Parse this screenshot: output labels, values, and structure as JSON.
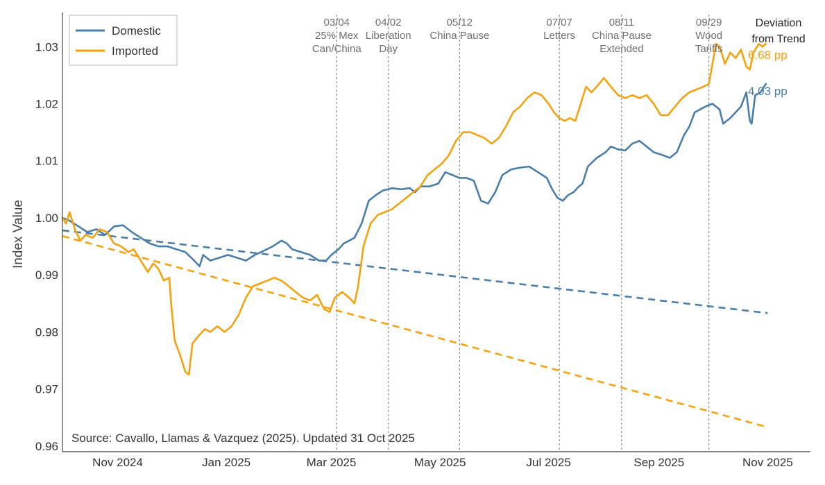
{
  "chart_data": {
    "type": "line",
    "title": "",
    "xlabel": "",
    "ylabel": "Index Value",
    "ylim": [
      0.959,
      1.036
    ],
    "yticks": [
      0.96,
      0.97,
      0.98,
      0.99,
      1.0,
      1.01,
      1.02,
      1.03
    ],
    "ytick_labels": [
      "0.96",
      "0.97",
      "0.98",
      "0.99",
      "1.00",
      "1.01",
      "1.02",
      "1.03"
    ],
    "xlim": [
      "2024-10-01",
      "2025-11-25"
    ],
    "xticks": [
      {
        "date": "2024-11-01",
        "label": "Nov 2024"
      },
      {
        "date": "2025-01-01",
        "label": "Jan 2025"
      },
      {
        "date": "2025-03-01",
        "label": "Mar 2025"
      },
      {
        "date": "2025-05-01",
        "label": "May 2025"
      },
      {
        "date": "2025-07-01",
        "label": "Jul 2025"
      },
      {
        "date": "2025-09-01",
        "label": "Sep 2025"
      },
      {
        "date": "2025-11-01",
        "label": "Nov 2025"
      }
    ],
    "legend": {
      "placement": "top-left",
      "entries": [
        "Domestic",
        "Imported"
      ]
    },
    "events": [
      {
        "date": "2025-03-04",
        "lines": [
          "03/04",
          "25% Mex",
          "Can/China"
        ]
      },
      {
        "date": "2025-04-02",
        "lines": [
          "04/02",
          "Liberation",
          "Day"
        ]
      },
      {
        "date": "2025-05-12",
        "lines": [
          "05/12",
          "China Pause"
        ]
      },
      {
        "date": "2025-07-07",
        "lines": [
          "07/07",
          "Letters"
        ]
      },
      {
        "date": "2025-08-11",
        "lines": [
          "08/11",
          "China Pause",
          "Extended"
        ]
      },
      {
        "date": "2025-09-29",
        "lines": [
          "09/29",
          "Wood",
          "Tariffs"
        ]
      }
    ],
    "deviation": {
      "title_lines": [
        "Deviation",
        "from Trend"
      ],
      "imported": "6.68 pp",
      "domestic": "4.03 pp"
    },
    "source": "Source: Cavallo, Llamas & Vazquez (2025). Updated 31 Oct 2025",
    "series": [
      {
        "name": "Domestic",
        "color": "#4a7eaa",
        "points": [
          [
            "2024-10-01",
            1.0
          ],
          [
            "2024-10-05",
            0.9995
          ],
          [
            "2024-10-10",
            0.9985
          ],
          [
            "2024-10-15",
            0.9975
          ],
          [
            "2024-10-20",
            0.998
          ],
          [
            "2024-10-25",
            0.997
          ],
          [
            "2024-10-30",
            0.9985
          ],
          [
            "2024-11-04",
            0.9987
          ],
          [
            "2024-11-09",
            0.9975
          ],
          [
            "2024-11-14",
            0.9965
          ],
          [
            "2024-11-19",
            0.9955
          ],
          [
            "2024-11-24",
            0.995
          ],
          [
            "2024-11-29",
            0.995
          ],
          [
            "2024-12-04",
            0.9945
          ],
          [
            "2024-12-09",
            0.994
          ],
          [
            "2024-12-14",
            0.9925
          ],
          [
            "2024-12-17",
            0.9915
          ],
          [
            "2024-12-19",
            0.9935
          ],
          [
            "2024-12-23",
            0.9925
          ],
          [
            "2024-12-28",
            0.993
          ],
          [
            "2025-01-02",
            0.9935
          ],
          [
            "2025-01-07",
            0.993
          ],
          [
            "2025-01-12",
            0.9925
          ],
          [
            "2025-01-17",
            0.9935
          ],
          [
            "2025-01-22",
            0.9942
          ],
          [
            "2025-01-27",
            0.995
          ],
          [
            "2025-02-01",
            0.996
          ],
          [
            "2025-02-04",
            0.9955
          ],
          [
            "2025-02-07",
            0.9945
          ],
          [
            "2025-02-12",
            0.994
          ],
          [
            "2025-02-17",
            0.9935
          ],
          [
            "2025-02-22",
            0.9925
          ],
          [
            "2025-02-26",
            0.9925
          ],
          [
            "2025-03-01",
            0.9935
          ],
          [
            "2025-03-05",
            0.9945
          ],
          [
            "2025-03-08",
            0.9955
          ],
          [
            "2025-03-11",
            0.996
          ],
          [
            "2025-03-14",
            0.9965
          ],
          [
            "2025-03-18",
            0.999
          ],
          [
            "2025-03-22",
            1.003
          ],
          [
            "2025-03-26",
            1.004
          ],
          [
            "2025-03-30",
            1.0048
          ],
          [
            "2025-04-04",
            1.0052
          ],
          [
            "2025-04-09",
            1.005
          ],
          [
            "2025-04-14",
            1.0052
          ],
          [
            "2025-04-17",
            1.0045
          ],
          [
            "2025-04-20",
            1.0055
          ],
          [
            "2025-04-25",
            1.0055
          ],
          [
            "2025-04-30",
            1.006
          ],
          [
            "2025-05-04",
            1.008
          ],
          [
            "2025-05-08",
            1.0075
          ],
          [
            "2025-05-12",
            1.007
          ],
          [
            "2025-05-16",
            1.007
          ],
          [
            "2025-05-20",
            1.0065
          ],
          [
            "2025-05-24",
            1.003
          ],
          [
            "2025-05-28",
            1.0025
          ],
          [
            "2025-06-01",
            1.0045
          ],
          [
            "2025-06-05",
            1.0075
          ],
          [
            "2025-06-10",
            1.0085
          ],
          [
            "2025-06-15",
            1.0088
          ],
          [
            "2025-06-20",
            1.009
          ],
          [
            "2025-06-25",
            1.008
          ],
          [
            "2025-06-30",
            1.007
          ],
          [
            "2025-07-03",
            1.005
          ],
          [
            "2025-07-06",
            1.0035
          ],
          [
            "2025-07-09",
            1.003
          ],
          [
            "2025-07-12",
            1.004
          ],
          [
            "2025-07-15",
            1.0045
          ],
          [
            "2025-07-18",
            1.0055
          ],
          [
            "2025-07-20",
            1.006
          ],
          [
            "2025-07-23",
            1.009
          ],
          [
            "2025-07-28",
            1.0105
          ],
          [
            "2025-08-02",
            1.0115
          ],
          [
            "2025-08-05",
            1.0125
          ],
          [
            "2025-08-09",
            1.012
          ],
          [
            "2025-08-13",
            1.0118
          ],
          [
            "2025-08-17",
            1.013
          ],
          [
            "2025-08-21",
            1.0135
          ],
          [
            "2025-08-25",
            1.0125
          ],
          [
            "2025-08-29",
            1.0115
          ],
          [
            "2025-09-03",
            1.011
          ],
          [
            "2025-09-07",
            1.0105
          ],
          [
            "2025-09-11",
            1.0115
          ],
          [
            "2025-09-15",
            1.0145
          ],
          [
            "2025-09-18",
            1.016
          ],
          [
            "2025-09-21",
            1.0185
          ],
          [
            "2025-09-24",
            1.019
          ],
          [
            "2025-09-27",
            1.0195
          ],
          [
            "2025-10-01",
            1.02
          ],
          [
            "2025-10-05",
            1.019
          ],
          [
            "2025-10-07",
            1.0165
          ],
          [
            "2025-10-11",
            1.0175
          ],
          [
            "2025-10-14",
            1.0185
          ],
          [
            "2025-10-17",
            1.0195
          ],
          [
            "2025-10-20",
            1.022
          ],
          [
            "2025-10-22",
            1.017
          ],
          [
            "2025-10-23",
            1.0165
          ],
          [
            "2025-10-25",
            1.0215
          ],
          [
            "2025-10-28",
            1.022
          ],
          [
            "2025-10-31",
            1.0235
          ]
        ]
      },
      {
        "name": "Imported",
        "color": "#f5a20f",
        "points": [
          [
            "2024-10-01",
            1.0
          ],
          [
            "2024-10-03",
            0.999
          ],
          [
            "2024-10-05",
            1.001
          ],
          [
            "2024-10-08",
            0.998
          ],
          [
            "2024-10-11",
            0.996
          ],
          [
            "2024-10-14",
            0.997
          ],
          [
            "2024-10-18",
            0.9965
          ],
          [
            "2024-10-22",
            0.998
          ],
          [
            "2024-10-26",
            0.9975
          ],
          [
            "2024-10-30",
            0.9955
          ],
          [
            "2024-11-03",
            0.995
          ],
          [
            "2024-11-07",
            0.994
          ],
          [
            "2024-11-10",
            0.9945
          ],
          [
            "2024-11-14",
            0.9925
          ],
          [
            "2024-11-18",
            0.9905
          ],
          [
            "2024-11-21",
            0.992
          ],
          [
            "2024-11-24",
            0.991
          ],
          [
            "2024-11-27",
            0.989
          ],
          [
            "2024-11-30",
            0.9895
          ],
          [
            "2024-12-01",
            0.985
          ],
          [
            "2024-12-03",
            0.9785
          ],
          [
            "2024-12-06",
            0.976
          ],
          [
            "2024-12-09",
            0.973
          ],
          [
            "2024-12-11",
            0.9725
          ],
          [
            "2024-12-13",
            0.978
          ],
          [
            "2024-12-17",
            0.9795
          ],
          [
            "2024-12-20",
            0.9805
          ],
          [
            "2024-12-23",
            0.98
          ],
          [
            "2024-12-27",
            0.981
          ],
          [
            "2024-12-31",
            0.98
          ],
          [
            "2025-01-04",
            0.981
          ],
          [
            "2025-01-08",
            0.983
          ],
          [
            "2025-01-12",
            0.986
          ],
          [
            "2025-01-16",
            0.988
          ],
          [
            "2025-01-20",
            0.9885
          ],
          [
            "2025-01-24",
            0.989
          ],
          [
            "2025-01-28",
            0.9895
          ],
          [
            "2025-02-01",
            0.989
          ],
          [
            "2025-02-05",
            0.988
          ],
          [
            "2025-02-09",
            0.987
          ],
          [
            "2025-02-13",
            0.986
          ],
          [
            "2025-02-17",
            0.9855
          ],
          [
            "2025-02-21",
            0.9865
          ],
          [
            "2025-02-25",
            0.984
          ],
          [
            "2025-02-28",
            0.9835
          ],
          [
            "2025-03-03",
            0.986
          ],
          [
            "2025-03-07",
            0.987
          ],
          [
            "2025-03-11",
            0.986
          ],
          [
            "2025-03-14",
            0.985
          ],
          [
            "2025-03-16",
            0.988
          ],
          [
            "2025-03-19",
            0.995
          ],
          [
            "2025-03-23",
            0.999
          ],
          [
            "2025-03-27",
            1.0005
          ],
          [
            "2025-03-31",
            1.001
          ],
          [
            "2025-04-04",
            1.0015
          ],
          [
            "2025-04-08",
            1.0025
          ],
          [
            "2025-04-12",
            1.0035
          ],
          [
            "2025-04-16",
            1.0045
          ],
          [
            "2025-04-20",
            1.0055
          ],
          [
            "2025-04-24",
            1.0075
          ],
          [
            "2025-04-28",
            1.0085
          ],
          [
            "2025-05-02",
            1.0095
          ],
          [
            "2025-05-06",
            1.011
          ],
          [
            "2025-05-10",
            1.0135
          ],
          [
            "2025-05-14",
            1.015
          ],
          [
            "2025-05-18",
            1.015
          ],
          [
            "2025-05-22",
            1.0145
          ],
          [
            "2025-05-26",
            1.014
          ],
          [
            "2025-05-30",
            1.013
          ],
          [
            "2025-06-03",
            1.014
          ],
          [
            "2025-06-07",
            1.016
          ],
          [
            "2025-06-11",
            1.0185
          ],
          [
            "2025-06-15",
            1.0195
          ],
          [
            "2025-06-19",
            1.021
          ],
          [
            "2025-06-23",
            1.022
          ],
          [
            "2025-06-27",
            1.0215
          ],
          [
            "2025-07-01",
            1.02
          ],
          [
            "2025-07-04",
            1.0185
          ],
          [
            "2025-07-07",
            1.0175
          ],
          [
            "2025-07-10",
            1.017
          ],
          [
            "2025-07-13",
            1.0175
          ],
          [
            "2025-07-16",
            1.017
          ],
          [
            "2025-07-19",
            1.02
          ],
          [
            "2025-07-22",
            1.023
          ],
          [
            "2025-07-25",
            1.022
          ],
          [
            "2025-07-28",
            1.023
          ],
          [
            "2025-08-01",
            1.0245
          ],
          [
            "2025-08-05",
            1.023
          ],
          [
            "2025-08-09",
            1.0215
          ],
          [
            "2025-08-13",
            1.021
          ],
          [
            "2025-08-17",
            1.0215
          ],
          [
            "2025-08-21",
            1.021
          ],
          [
            "2025-08-25",
            1.0215
          ],
          [
            "2025-08-29",
            1.02
          ],
          [
            "2025-09-02",
            1.018
          ],
          [
            "2025-09-06",
            1.018
          ],
          [
            "2025-09-10",
            1.0195
          ],
          [
            "2025-09-14",
            1.021
          ],
          [
            "2025-09-18",
            1.022
          ],
          [
            "2025-09-22",
            1.0225
          ],
          [
            "2025-09-26",
            1.023
          ],
          [
            "2025-09-29",
            1.0235
          ],
          [
            "2025-10-01",
            1.027
          ],
          [
            "2025-10-03",
            1.0305
          ],
          [
            "2025-10-05",
            1.03
          ],
          [
            "2025-10-08",
            1.027
          ],
          [
            "2025-10-11",
            1.029
          ],
          [
            "2025-10-14",
            1.028
          ],
          [
            "2025-10-17",
            1.0295
          ],
          [
            "2025-10-20",
            1.0265
          ],
          [
            "2025-10-22",
            1.026
          ],
          [
            "2025-10-24",
            1.029
          ],
          [
            "2025-10-27",
            1.0305
          ],
          [
            "2025-10-29",
            1.03
          ],
          [
            "2025-10-31",
            1.0305
          ]
        ]
      }
    ],
    "trends": [
      {
        "name": "Domestic trend",
        "color": "#4a7eaa",
        "points": [
          [
            "2024-10-01",
            0.9978
          ],
          [
            "2025-11-01",
            0.9833
          ]
        ]
      },
      {
        "name": "Imported trend",
        "color": "#f5a20f",
        "points": [
          [
            "2024-10-01",
            0.9968
          ],
          [
            "2025-11-01",
            0.9633
          ]
        ]
      }
    ]
  }
}
